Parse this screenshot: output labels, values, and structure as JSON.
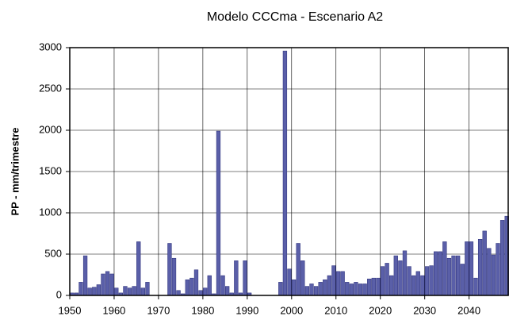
{
  "chart_data": {
    "type": "bar",
    "title": "Modelo CCCma - Escenario A2",
    "y_label": "PP - mm/trimestre",
    "x": [
      1950,
      1951,
      1952,
      1953,
      1954,
      1955,
      1956,
      1957,
      1958,
      1959,
      1960,
      1961,
      1962,
      1963,
      1964,
      1965,
      1966,
      1967,
      1968,
      1969,
      1970,
      1971,
      1972,
      1973,
      1974,
      1975,
      1976,
      1977,
      1978,
      1979,
      1980,
      1981,
      1982,
      1983,
      1984,
      1985,
      1986,
      1987,
      1988,
      1989,
      1990,
      1991,
      1992,
      1993,
      1994,
      1995,
      1996,
      1997,
      1998,
      1999,
      2000,
      2001,
      2002,
      2003,
      2004,
      2005,
      2006,
      2007,
      2008,
      2009,
      2010,
      2011,
      2012,
      2013,
      2014,
      2015,
      2016,
      2017,
      2018,
      2019,
      2020,
      2021,
      2022,
      2023,
      2024,
      2025,
      2026,
      2027,
      2028,
      2029,
      2030,
      2031,
      2032,
      2033,
      2034,
      2035,
      2036,
      2037,
      2038,
      2039,
      2040,
      2041,
      2042,
      2043,
      2044,
      2045,
      2046,
      2047,
      2048
    ],
    "values": [
      30,
      30,
      160,
      480,
      90,
      100,
      130,
      260,
      290,
      260,
      90,
      30,
      110,
      90,
      110,
      650,
      90,
      160,
      0,
      0,
      0,
      0,
      630,
      450,
      60,
      20,
      190,
      210,
      310,
      60,
      90,
      240,
      20,
      1990,
      240,
      110,
      30,
      420,
      30,
      420,
      30,
      0,
      0,
      0,
      0,
      0,
      0,
      160,
      2960,
      320,
      190,
      630,
      420,
      110,
      140,
      110,
      160,
      190,
      240,
      360,
      290,
      290,
      160,
      140,
      160,
      140,
      140,
      200,
      210,
      210,
      350,
      390,
      240,
      480,
      420,
      540,
      350,
      240,
      290,
      240,
      350,
      360,
      530,
      530,
      650,
      450,
      480,
      480,
      380,
      650,
      650,
      210,
      680,
      780,
      570,
      490,
      630,
      910,
      960
    ],
    "color": "#5a5fa8",
    "xlim": [
      1950,
      2049
    ],
    "xticks": [
      1950,
      1960,
      1970,
      1980,
      1990,
      2000,
      2010,
      2020,
      2030,
      2040
    ],
    "ylim": [
      0,
      3000
    ],
    "yticks": [
      0,
      500,
      1000,
      1500,
      2000,
      2500,
      3000
    ],
    "grid": true
  }
}
